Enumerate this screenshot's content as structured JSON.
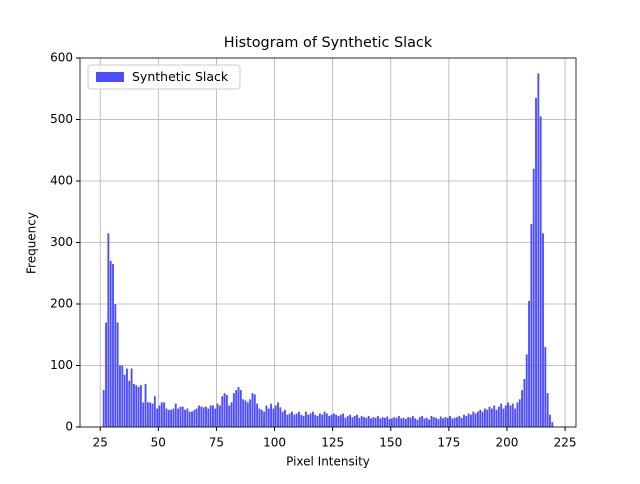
{
  "chart_data": {
    "type": "histogram",
    "title": "Histogram of Synthetic Slack",
    "x_label": "Pixel Intensity",
    "y_label": "Frequency",
    "bins": [
      26,
      27,
      28,
      29,
      30,
      31,
      32,
      33,
      34,
      35,
      36,
      37,
      38,
      39,
      40,
      41,
      42,
      43,
      44,
      45,
      46,
      47,
      48,
      49,
      50,
      51,
      52,
      53,
      54,
      55,
      56,
      57,
      58,
      59,
      60,
      61,
      62,
      63,
      64,
      65,
      66,
      67,
      68,
      69,
      70,
      71,
      72,
      73,
      74,
      75,
      76,
      77,
      78,
      79,
      80,
      81,
      82,
      83,
      84,
      85,
      86,
      87,
      88,
      89,
      90,
      91,
      92,
      93,
      94,
      95,
      96,
      97,
      98,
      99,
      100,
      101,
      102,
      103,
      104,
      105,
      106,
      107,
      108,
      109,
      110,
      111,
      112,
      113,
      114,
      115,
      116,
      117,
      118,
      119,
      120,
      121,
      122,
      123,
      124,
      125,
      126,
      127,
      128,
      129,
      130,
      131,
      132,
      133,
      134,
      135,
      136,
      137,
      138,
      139,
      140,
      141,
      142,
      143,
      144,
      145,
      146,
      147,
      148,
      149,
      150,
      151,
      152,
      153,
      154,
      155,
      156,
      157,
      158,
      159,
      160,
      161,
      162,
      163,
      164,
      165,
      166,
      167,
      168,
      169,
      170,
      171,
      172,
      173,
      174,
      175,
      176,
      177,
      178,
      179,
      180,
      181,
      182,
      183,
      184,
      185,
      186,
      187,
      188,
      189,
      190,
      191,
      192,
      193,
      194,
      195,
      196,
      197,
      198,
      199,
      200,
      201,
      202,
      203,
      204,
      205,
      206,
      207,
      208,
      209,
      210,
      211,
      212,
      213,
      214,
      215,
      216,
      217,
      218,
      219,
      220
    ],
    "series": [
      {
        "name": "Synthetic Slack",
        "color": "#4d4dff",
        "values": [
          60,
          170,
          315,
          270,
          265,
          200,
          170,
          100,
          100,
          85,
          95,
          75,
          95,
          70,
          68,
          65,
          68,
          40,
          70,
          40,
          40,
          38,
          50,
          30,
          35,
          40,
          40,
          30,
          28,
          28,
          30,
          38,
          30,
          33,
          33,
          28,
          30,
          25,
          25,
          28,
          30,
          35,
          33,
          32,
          33,
          30,
          35,
          35,
          30,
          38,
          35,
          50,
          55,
          52,
          35,
          40,
          55,
          60,
          65,
          60,
          45,
          43,
          40,
          45,
          55,
          53,
          38,
          30,
          28,
          25,
          35,
          30,
          38,
          30,
          35,
          40,
          32,
          25,
          28,
          20,
          22,
          25,
          20,
          22,
          25,
          20,
          18,
          25,
          20,
          22,
          25,
          20,
          18,
          22,
          20,
          25,
          22,
          18,
          20,
          22,
          20,
          18,
          20,
          22,
          15,
          18,
          20,
          16,
          18,
          20,
          15,
          18,
          16,
          15,
          18,
          14,
          16,
          15,
          18,
          14,
          16,
          15,
          17,
          13,
          14,
          16,
          15,
          18,
          14,
          15,
          13,
          16,
          15,
          18,
          14,
          12,
          16,
          18,
          14,
          15,
          12,
          18,
          16,
          15,
          13,
          17,
          14,
          16,
          15,
          18,
          14,
          15,
          16,
          18,
          15,
          20,
          18,
          22,
          20,
          25,
          22,
          25,
          28,
          25,
          30,
          28,
          33,
          30,
          35,
          28,
          33,
          38,
          30,
          35,
          40,
          35,
          38,
          30,
          40,
          45,
          60,
          78,
          118,
          205,
          330,
          420,
          535,
          575,
          505,
          315,
          130,
          55,
          20,
          8
        ]
      }
    ],
    "xlim": [
      16.3,
      229.7
    ],
    "xticks": [
      25,
      50,
      75,
      100,
      125,
      150,
      175,
      200,
      225
    ],
    "ylim": [
      0,
      600
    ],
    "yticks": [
      0,
      100,
      200,
      300,
      400,
      500,
      600
    ],
    "grid": true,
    "legend": "upper left",
    "rwidth": 0.8
  }
}
